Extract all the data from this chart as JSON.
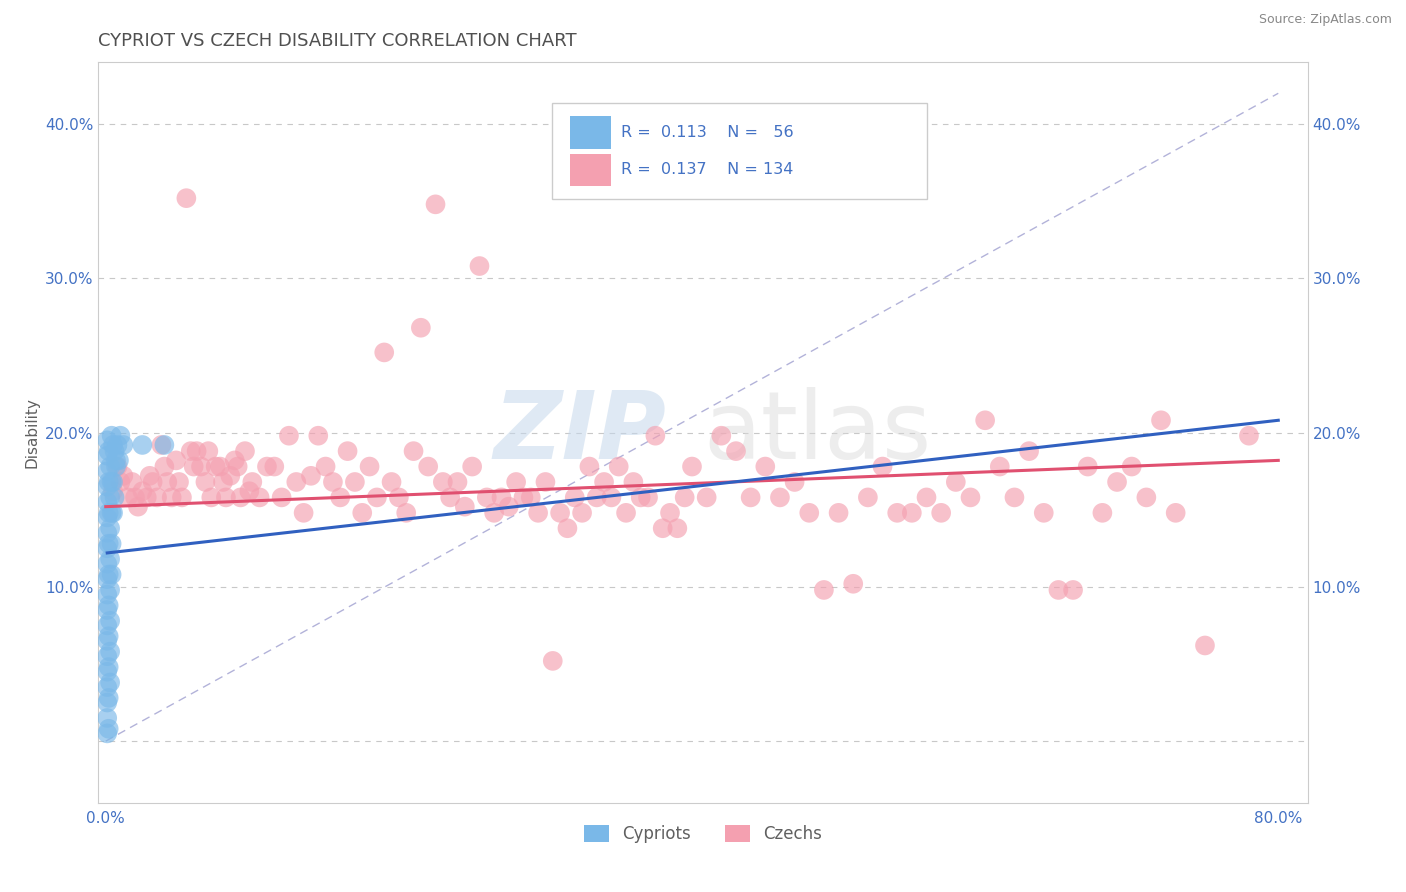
{
  "title": "CYPRIOT VS CZECH DISABILITY CORRELATION CHART",
  "source_text": "Source: ZipAtlas.com",
  "watermark_zip": "ZIP",
  "watermark_atlas": "atlas",
  "xlabel": "",
  "ylabel": "Disability",
  "xlim": [
    -0.005,
    0.82
  ],
  "ylim": [
    -0.04,
    0.44
  ],
  "xticks": [
    0.0,
    0.1,
    0.2,
    0.3,
    0.4,
    0.5,
    0.6,
    0.7,
    0.8
  ],
  "yticks": [
    0.0,
    0.1,
    0.2,
    0.3,
    0.4
  ],
  "xtick_labels": [
    "0.0%",
    "",
    "",
    "",
    "",
    "",
    "",
    "",
    "80.0%"
  ],
  "ytick_labels_left": [
    "",
    "10.0%",
    "20.0%",
    "30.0%",
    "40.0%"
  ],
  "ytick_labels_right": [
    "",
    "10.0%",
    "20.0%",
    "30.0%",
    "40.0%"
  ],
  "cypriot_color": "#7ab8e8",
  "czech_color": "#f4a0b0",
  "cypriot_line_color": "#3060c0",
  "czech_line_color": "#e05070",
  "ref_line_color": "#8080c0",
  "cypriot_R": "0.113",
  "cypriot_N": "56",
  "czech_R": "0.137",
  "czech_N": "134",
  "legend_label_cypriot": "Cypriots",
  "legend_label_czech": "Czechs",
  "cypriot_scatter": [
    [
      0.001,
      0.195
    ],
    [
      0.001,
      0.185
    ],
    [
      0.001,
      0.175
    ],
    [
      0.001,
      0.165
    ],
    [
      0.001,
      0.155
    ],
    [
      0.001,
      0.145
    ],
    [
      0.001,
      0.135
    ],
    [
      0.001,
      0.125
    ],
    [
      0.001,
      0.115
    ],
    [
      0.001,
      0.105
    ],
    [
      0.001,
      0.095
    ],
    [
      0.001,
      0.085
    ],
    [
      0.001,
      0.075
    ],
    [
      0.001,
      0.065
    ],
    [
      0.001,
      0.055
    ],
    [
      0.001,
      0.045
    ],
    [
      0.001,
      0.035
    ],
    [
      0.001,
      0.025
    ],
    [
      0.001,
      0.015
    ],
    [
      0.001,
      0.005
    ],
    [
      0.002,
      0.188
    ],
    [
      0.002,
      0.168
    ],
    [
      0.002,
      0.148
    ],
    [
      0.002,
      0.128
    ],
    [
      0.002,
      0.108
    ],
    [
      0.002,
      0.088
    ],
    [
      0.002,
      0.068
    ],
    [
      0.002,
      0.048
    ],
    [
      0.002,
      0.028
    ],
    [
      0.002,
      0.008
    ],
    [
      0.003,
      0.178
    ],
    [
      0.003,
      0.158
    ],
    [
      0.003,
      0.138
    ],
    [
      0.003,
      0.118
    ],
    [
      0.003,
      0.098
    ],
    [
      0.003,
      0.078
    ],
    [
      0.003,
      0.058
    ],
    [
      0.003,
      0.038
    ],
    [
      0.004,
      0.198
    ],
    [
      0.004,
      0.168
    ],
    [
      0.004,
      0.148
    ],
    [
      0.004,
      0.128
    ],
    [
      0.004,
      0.108
    ],
    [
      0.005,
      0.192
    ],
    [
      0.005,
      0.168
    ],
    [
      0.005,
      0.148
    ],
    [
      0.006,
      0.188
    ],
    [
      0.006,
      0.158
    ],
    [
      0.007,
      0.182
    ],
    [
      0.007,
      0.178
    ],
    [
      0.008,
      0.192
    ],
    [
      0.009,
      0.182
    ],
    [
      0.01,
      0.198
    ],
    [
      0.012,
      0.192
    ],
    [
      0.025,
      0.192
    ],
    [
      0.04,
      0.192
    ]
  ],
  "czech_scatter": [
    [
      0.005,
      0.162
    ],
    [
      0.008,
      0.178
    ],
    [
      0.01,
      0.168
    ],
    [
      0.012,
      0.172
    ],
    [
      0.015,
      0.158
    ],
    [
      0.018,
      0.168
    ],
    [
      0.02,
      0.158
    ],
    [
      0.022,
      0.152
    ],
    [
      0.025,
      0.162
    ],
    [
      0.028,
      0.158
    ],
    [
      0.03,
      0.172
    ],
    [
      0.032,
      0.168
    ],
    [
      0.035,
      0.158
    ],
    [
      0.038,
      0.192
    ],
    [
      0.04,
      0.178
    ],
    [
      0.042,
      0.168
    ],
    [
      0.045,
      0.158
    ],
    [
      0.048,
      0.182
    ],
    [
      0.05,
      0.168
    ],
    [
      0.052,
      0.158
    ],
    [
      0.055,
      0.352
    ],
    [
      0.058,
      0.188
    ],
    [
      0.06,
      0.178
    ],
    [
      0.062,
      0.188
    ],
    [
      0.065,
      0.178
    ],
    [
      0.068,
      0.168
    ],
    [
      0.07,
      0.188
    ],
    [
      0.072,
      0.158
    ],
    [
      0.075,
      0.178
    ],
    [
      0.078,
      0.178
    ],
    [
      0.08,
      0.168
    ],
    [
      0.082,
      0.158
    ],
    [
      0.085,
      0.172
    ],
    [
      0.088,
      0.182
    ],
    [
      0.09,
      0.178
    ],
    [
      0.092,
      0.158
    ],
    [
      0.095,
      0.188
    ],
    [
      0.098,
      0.162
    ],
    [
      0.1,
      0.168
    ],
    [
      0.105,
      0.158
    ],
    [
      0.11,
      0.178
    ],
    [
      0.115,
      0.178
    ],
    [
      0.12,
      0.158
    ],
    [
      0.125,
      0.198
    ],
    [
      0.13,
      0.168
    ],
    [
      0.135,
      0.148
    ],
    [
      0.14,
      0.172
    ],
    [
      0.145,
      0.198
    ],
    [
      0.15,
      0.178
    ],
    [
      0.155,
      0.168
    ],
    [
      0.16,
      0.158
    ],
    [
      0.165,
      0.188
    ],
    [
      0.17,
      0.168
    ],
    [
      0.175,
      0.148
    ],
    [
      0.18,
      0.178
    ],
    [
      0.185,
      0.158
    ],
    [
      0.19,
      0.252
    ],
    [
      0.195,
      0.168
    ],
    [
      0.2,
      0.158
    ],
    [
      0.205,
      0.148
    ],
    [
      0.21,
      0.188
    ],
    [
      0.215,
      0.268
    ],
    [
      0.22,
      0.178
    ],
    [
      0.225,
      0.348
    ],
    [
      0.23,
      0.168
    ],
    [
      0.235,
      0.158
    ],
    [
      0.24,
      0.168
    ],
    [
      0.245,
      0.152
    ],
    [
      0.25,
      0.178
    ],
    [
      0.255,
      0.308
    ],
    [
      0.26,
      0.158
    ],
    [
      0.265,
      0.148
    ],
    [
      0.27,
      0.158
    ],
    [
      0.275,
      0.152
    ],
    [
      0.28,
      0.168
    ],
    [
      0.285,
      0.158
    ],
    [
      0.29,
      0.158
    ],
    [
      0.295,
      0.148
    ],
    [
      0.3,
      0.168
    ],
    [
      0.305,
      0.052
    ],
    [
      0.31,
      0.148
    ],
    [
      0.315,
      0.138
    ],
    [
      0.32,
      0.158
    ],
    [
      0.325,
      0.148
    ],
    [
      0.33,
      0.178
    ],
    [
      0.335,
      0.158
    ],
    [
      0.34,
      0.168
    ],
    [
      0.345,
      0.158
    ],
    [
      0.35,
      0.178
    ],
    [
      0.355,
      0.148
    ],
    [
      0.36,
      0.168
    ],
    [
      0.365,
      0.158
    ],
    [
      0.37,
      0.158
    ],
    [
      0.375,
      0.198
    ],
    [
      0.38,
      0.138
    ],
    [
      0.385,
      0.148
    ],
    [
      0.39,
      0.138
    ],
    [
      0.395,
      0.158
    ],
    [
      0.4,
      0.178
    ],
    [
      0.41,
      0.158
    ],
    [
      0.42,
      0.198
    ],
    [
      0.43,
      0.188
    ],
    [
      0.44,
      0.158
    ],
    [
      0.45,
      0.178
    ],
    [
      0.46,
      0.158
    ],
    [
      0.47,
      0.168
    ],
    [
      0.48,
      0.148
    ],
    [
      0.49,
      0.098
    ],
    [
      0.5,
      0.148
    ],
    [
      0.51,
      0.102
    ],
    [
      0.52,
      0.158
    ],
    [
      0.53,
      0.178
    ],
    [
      0.54,
      0.148
    ],
    [
      0.55,
      0.148
    ],
    [
      0.56,
      0.158
    ],
    [
      0.57,
      0.148
    ],
    [
      0.58,
      0.168
    ],
    [
      0.59,
      0.158
    ],
    [
      0.6,
      0.208
    ],
    [
      0.61,
      0.178
    ],
    [
      0.62,
      0.158
    ],
    [
      0.63,
      0.188
    ],
    [
      0.64,
      0.148
    ],
    [
      0.65,
      0.098
    ],
    [
      0.66,
      0.098
    ],
    [
      0.67,
      0.178
    ],
    [
      0.68,
      0.148
    ],
    [
      0.69,
      0.168
    ],
    [
      0.7,
      0.178
    ],
    [
      0.71,
      0.158
    ],
    [
      0.72,
      0.208
    ],
    [
      0.73,
      0.148
    ],
    [
      0.75,
      0.062
    ],
    [
      0.78,
      0.198
    ]
  ],
  "cypriot_trend_x": [
    0.001,
    0.8
  ],
  "cypriot_trend_y": [
    0.122,
    0.208
  ],
  "czech_trend_x": [
    0.0,
    0.8
  ],
  "czech_trend_y": [
    0.152,
    0.182
  ],
  "ref_line_x": [
    0.0,
    0.8
  ],
  "ref_line_y": [
    0.0,
    0.42
  ],
  "grid_color": "#c8c8c8",
  "background_color": "#ffffff",
  "title_color": "#505050",
  "axis_label_color": "#606060",
  "tick_label_color": "#4472c4",
  "legend_text_color": "#4472c4"
}
